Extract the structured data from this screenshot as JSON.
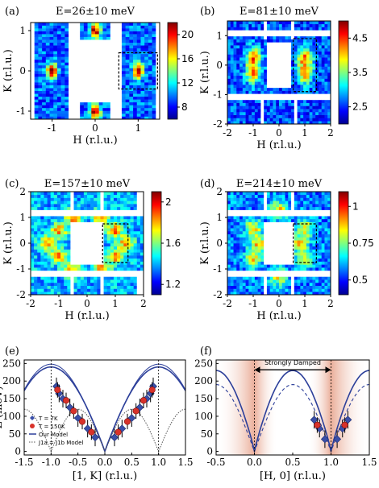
{
  "chart_data": [
    {
      "panel": "(a)",
      "type": "heatmap",
      "title": "E=26±10 meV",
      "xlabel": "H (r.l.u.)",
      "ylabel": "K (r.l.u.)",
      "xlim": [
        -1.5,
        1.5
      ],
      "ylim": [
        -1.2,
        1.2
      ],
      "xticks": [
        "-1",
        "0",
        "1"
      ],
      "yticks": [
        "-1",
        "0",
        "1"
      ],
      "colorbar_ticks": [
        "8",
        "12",
        "16",
        "20"
      ],
      "crange": [
        6,
        22
      ],
      "peaks": [
        {
          "h": -1,
          "k": 0
        },
        {
          "h": 1,
          "k": 0
        },
        {
          "h": 0,
          "k": -1
        },
        {
          "h": 0,
          "k": 1
        }
      ]
    },
    {
      "panel": "(b)",
      "type": "heatmap",
      "title": "E=81±10 meV",
      "xlabel": "H (r.l.u.)",
      "ylabel": "K (r.l.u.)",
      "xlim": [
        -2,
        2
      ],
      "ylim": [
        -2,
        1.5
      ],
      "xticks": [
        "-2",
        "-1",
        "0",
        "1",
        "2"
      ],
      "yticks": [
        "-2",
        "-1",
        "0",
        "1"
      ],
      "colorbar_ticks": [
        "2.5",
        "3.5",
        "4.5"
      ],
      "crange": [
        2,
        5
      ]
    },
    {
      "panel": "(c)",
      "type": "heatmap",
      "title": "E=157±10 meV",
      "xlabel": "H (r.l.u.)",
      "ylabel": "K (r.l.u.)",
      "xlim": [
        -2,
        2
      ],
      "ylim": [
        -2,
        2
      ],
      "xticks": [
        "-2",
        "-1",
        "0",
        "1",
        "2"
      ],
      "yticks": [
        "-2",
        "-1",
        "0",
        "1",
        "2"
      ],
      "colorbar_ticks": [
        "1.2",
        "1.6",
        "2"
      ],
      "crange": [
        1.1,
        2.1
      ]
    },
    {
      "panel": "(d)",
      "type": "heatmap",
      "title": "E=214±10 meV",
      "xlabel": "H (r.l.u.)",
      "ylabel": "K (r.l.u.)",
      "xlim": [
        -2,
        2
      ],
      "ylim": [
        -2,
        2
      ],
      "xticks": [
        "-2",
        "-1",
        "0",
        "1",
        "2"
      ],
      "yticks": [
        "-2",
        "-1",
        "0",
        "1",
        "2"
      ],
      "colorbar_ticks": [
        "0.5",
        "0.75",
        "1"
      ],
      "crange": [
        0.4,
        1.1
      ]
    },
    {
      "panel": "(e)",
      "type": "scatter",
      "xlabel": "[1, K] (r.l.u.)",
      "ylabel": "E (meV)",
      "xlim": [
        -1.5,
        1.5
      ],
      "ylim": [
        -10,
        260
      ],
      "xticks": [
        "-1.5",
        "-1.0",
        "-0.5",
        "0.0",
        "0.5",
        "1.0",
        "1.5"
      ],
      "yticks": [
        "0",
        "50",
        "100",
        "150",
        "200",
        "250"
      ],
      "series": [
        {
          "name": "T = 7K",
          "x": [
            -0.9,
            -0.85,
            -0.78,
            -0.65,
            -0.5,
            -0.32,
            -0.18,
            0.18,
            0.32,
            0.5,
            0.65,
            0.78,
            0.85,
            0.9
          ],
          "y": [
            185,
            165,
            150,
            125,
            95,
            65,
            40,
            40,
            65,
            95,
            125,
            150,
            165,
            185
          ]
        },
        {
          "name": "T = 150K",
          "x": [
            -0.88,
            -0.72,
            -0.58,
            -0.42,
            -0.25,
            0.25,
            0.42,
            0.58,
            0.72,
            0.88
          ],
          "y": [
            175,
            145,
            115,
            85,
            55,
            55,
            85,
            115,
            145,
            175
          ]
        },
        {
          "name": "Our Model"
        },
        {
          "name": "J1a = J1b Model"
        }
      ]
    },
    {
      "panel": "(f)",
      "type": "scatter",
      "xlabel": "[H, 0] (r.l.u.)",
      "ylabel": "",
      "xlim": [
        -0.5,
        1.5
      ],
      "ylim": [
        -10,
        260
      ],
      "xticks": [
        "-0.5",
        "0.0",
        "0.5",
        "1.0",
        "1.5"
      ],
      "yticks": [
        "0",
        "50",
        "100",
        "150",
        "200",
        "250"
      ],
      "annotation": "Strongly Damped",
      "series": [
        {
          "name": "T = 7K",
          "x": [
            0.78,
            0.85,
            0.92,
            1.08,
            1.15,
            1.22
          ],
          "y": [
            90,
            65,
            35,
            35,
            65,
            90
          ]
        },
        {
          "name": "T = 150K",
          "x": [
            0.82,
            1.18
          ],
          "y": [
            75,
            75
          ]
        }
      ]
    }
  ]
}
